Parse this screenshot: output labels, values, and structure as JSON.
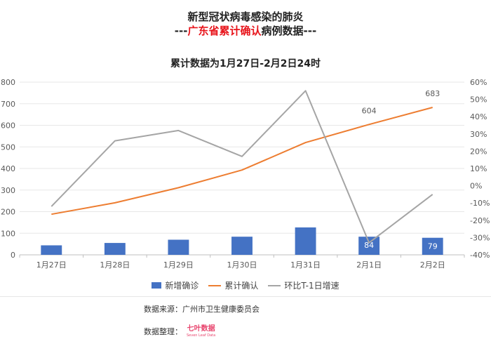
{
  "titles": {
    "line1": "新型冠状病毒感染的肺炎",
    "line2_prefix": "---",
    "line2_red": "广东省累计确认",
    "line2_suffix": "病例数据---",
    "line3": "累计数据为1月27日-2月2日24时"
  },
  "legend": {
    "new": "新增确诊",
    "cumulative": "累计确认",
    "growth": "环比T-1日增速"
  },
  "footer": {
    "source": "数据来源：广州市卫生健康委员会",
    "compiled": "数据整理：",
    "logo_main": "七叶数据",
    "logo_sub": "Seven Leaf Data"
  },
  "chart_data": {
    "type": "bar",
    "categories": [
      "1月27日",
      "1月28日",
      "1月29日",
      "1月30日",
      "1月31日",
      "2月1日",
      "2月2日"
    ],
    "series": [
      {
        "name": "新增确诊",
        "type": "bar",
        "axis": "left",
        "color": "#4472c4",
        "values": [
          44,
          55,
          70,
          84,
          127,
          84,
          79
        ]
      },
      {
        "name": "累计确认",
        "type": "line",
        "axis": "left",
        "color": "#ed7d31",
        "values": [
          188,
          241,
          311,
          393,
          520,
          604,
          683
        ]
      },
      {
        "name": "环比T-1日增速",
        "type": "line",
        "axis": "right",
        "color": "#a5a5a5",
        "values": [
          -12,
          26,
          32,
          17,
          55,
          -33,
          -5
        ]
      }
    ],
    "data_labels": [
      {
        "series": "累计确认",
        "index": 5,
        "text": "604"
      },
      {
        "series": "累计确认",
        "index": 6,
        "text": "683"
      },
      {
        "series": "新增确诊",
        "index": 5,
        "text": "84"
      },
      {
        "series": "新增确诊",
        "index": 6,
        "text": "79"
      }
    ],
    "left_axis": {
      "ticks": [
        "800",
        "700",
        "600",
        "500",
        "400",
        "300",
        "200",
        "100",
        "0"
      ],
      "range": [
        0,
        800
      ]
    },
    "right_axis": {
      "ticks": [
        "60%",
        "50%",
        "40%",
        "30%",
        "20%",
        "10%",
        "0%",
        "-10%",
        "-20%",
        "-30%",
        "-40%"
      ],
      "range": [
        -40,
        60
      ]
    },
    "grid": true,
    "legend_position": "bottom"
  }
}
